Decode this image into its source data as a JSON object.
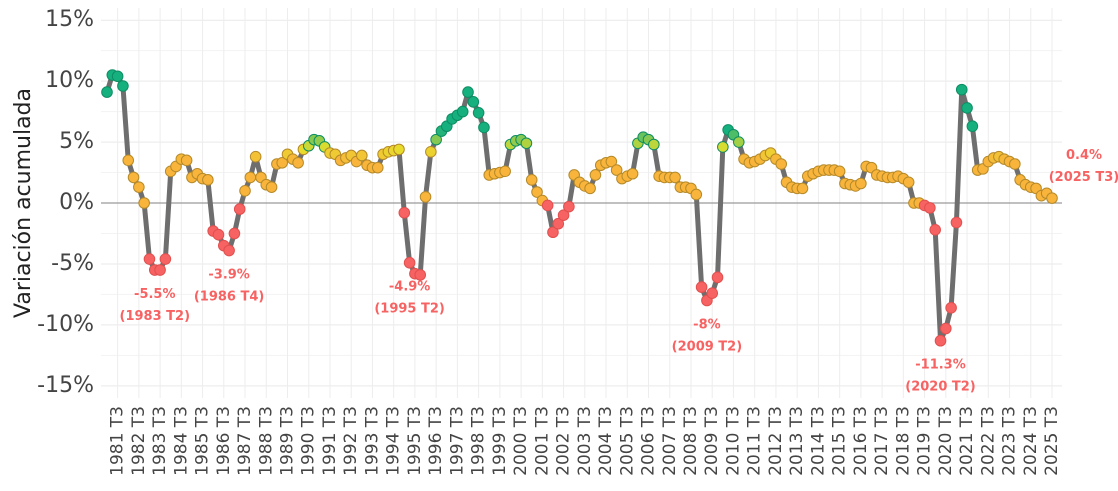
{
  "chart_data": {
    "type": "line",
    "title": "",
    "xlabel": "",
    "ylabel": "Variación acumulada",
    "ylim": [
      -0.16,
      0.16
    ],
    "y_ticks": [
      -0.15,
      -0.1,
      -0.05,
      0.0,
      0.05,
      0.1,
      0.15
    ],
    "y_tick_labels": [
      "-15%",
      "-10%",
      "-5%",
      "0%",
      "5%",
      "10%",
      "15%"
    ],
    "x_tick_labels": [
      "1981 T3",
      "1982 T3",
      "1983 T3",
      "1984 T3",
      "1985 T3",
      "1986 T3",
      "1987 T3",
      "1988 T3",
      "1989 T3",
      "1990 T3",
      "1991 T3",
      "1992 T3",
      "1993 T3",
      "1994 T3",
      "1995 T3",
      "1996 T3",
      "1997 T3",
      "1998 T3",
      "1999 T3",
      "2000 T3",
      "2001 T3",
      "2002 T3",
      "2003 T3",
      "2004 T3",
      "2005 T3",
      "2006 T3",
      "2007 T3",
      "2008 T3",
      "2009 T3",
      "2010 T3",
      "2011 T3",
      "2012 T3",
      "2013 T3",
      "2014 T3",
      "2015 T3",
      "2016 T3",
      "2017 T3",
      "2018 T3",
      "2019 T3",
      "2020 T3",
      "2021 T3",
      "2022 T3",
      "2023 T3",
      "2024 T3",
      "2025 T3"
    ],
    "first_period": "1981 T1",
    "last_period": "2025 T3",
    "grid": true,
    "zero_line": true,
    "line_color": "#6e6e6e",
    "color_scale": {
      "negative": "#f76262",
      "low": "#f9b43b",
      "mid": "#e6df2a",
      "high": "#16b07f"
    },
    "values": [
      0.091,
      0.105,
      0.104,
      0.096,
      0.035,
      0.021,
      0.013,
      0.0,
      -0.046,
      -0.055,
      -0.055,
      -0.046,
      0.026,
      0.03,
      0.036,
      0.035,
      0.021,
      0.024,
      0.02,
      0.019,
      -0.023,
      -0.026,
      -0.035,
      -0.039,
      -0.025,
      -0.005,
      0.01,
      0.021,
      0.038,
      0.021,
      0.015,
      0.013,
      0.032,
      0.033,
      0.04,
      0.036,
      0.033,
      0.044,
      0.047,
      0.052,
      0.051,
      0.046,
      0.041,
      0.04,
      0.035,
      0.037,
      0.039,
      0.034,
      0.039,
      0.031,
      0.029,
      0.029,
      0.04,
      0.042,
      0.043,
      0.044,
      -0.008,
      -0.049,
      -0.058,
      -0.059,
      0.005,
      0.042,
      0.052,
      0.059,
      0.063,
      0.069,
      0.072,
      0.075,
      0.091,
      0.083,
      0.074,
      0.062,
      0.023,
      0.024,
      0.025,
      0.026,
      0.048,
      0.051,
      0.052,
      0.049,
      0.019,
      0.009,
      0.002,
      -0.002,
      -0.024,
      -0.017,
      -0.01,
      -0.003,
      0.023,
      0.017,
      0.014,
      0.012,
      0.023,
      0.031,
      0.033,
      0.034,
      0.027,
      0.02,
      0.022,
      0.024,
      0.049,
      0.054,
      0.052,
      0.048,
      0.022,
      0.021,
      0.021,
      0.021,
      0.013,
      0.013,
      0.012,
      0.007,
      -0.069,
      -0.08,
      -0.074,
      -0.061,
      0.046,
      0.06,
      0.056,
      0.05,
      0.036,
      0.033,
      0.034,
      0.036,
      0.039,
      0.041,
      0.036,
      0.032,
      0.017,
      0.013,
      0.012,
      0.012,
      0.022,
      0.024,
      0.026,
      0.027,
      0.027,
      0.027,
      0.026,
      0.016,
      0.015,
      0.014,
      0.016,
      0.03,
      0.029,
      0.023,
      0.022,
      0.021,
      0.021,
      0.022,
      0.02,
      0.017,
      0.0,
      0.0,
      -0.002,
      -0.004,
      -0.022,
      -0.113,
      -0.103,
      -0.086,
      -0.016,
      0.093,
      0.078,
      0.063,
      0.027,
      0.028,
      0.034,
      0.037,
      0.038,
      0.036,
      0.034,
      0.032,
      0.019,
      0.015,
      0.013,
      0.012,
      0.006,
      0.008,
      0.004
    ],
    "annotations": [
      {
        "period": "1983 T2",
        "value": -0.055,
        "label_value": "-5.5%",
        "label_period": "(1983 T2)"
      },
      {
        "period": "1986 T4",
        "value": -0.039,
        "label_value": "-3.9%",
        "label_period": "(1986 T4)"
      },
      {
        "period": "1995 T2",
        "value": -0.049,
        "label_value": "-4.9%",
        "label_period": "(1995 T2)"
      },
      {
        "period": "2009 T2",
        "value": -0.08,
        "label_value": "-8%",
        "label_period": "(2009 T2)"
      },
      {
        "period": "2020 T2",
        "value": -0.113,
        "label_value": "-11.3%",
        "label_period": "(2020 T2)"
      },
      {
        "period": "2025 T3",
        "value": 0.004,
        "label_value": "0.4%",
        "label_period": "(2025 T3)"
      }
    ]
  }
}
